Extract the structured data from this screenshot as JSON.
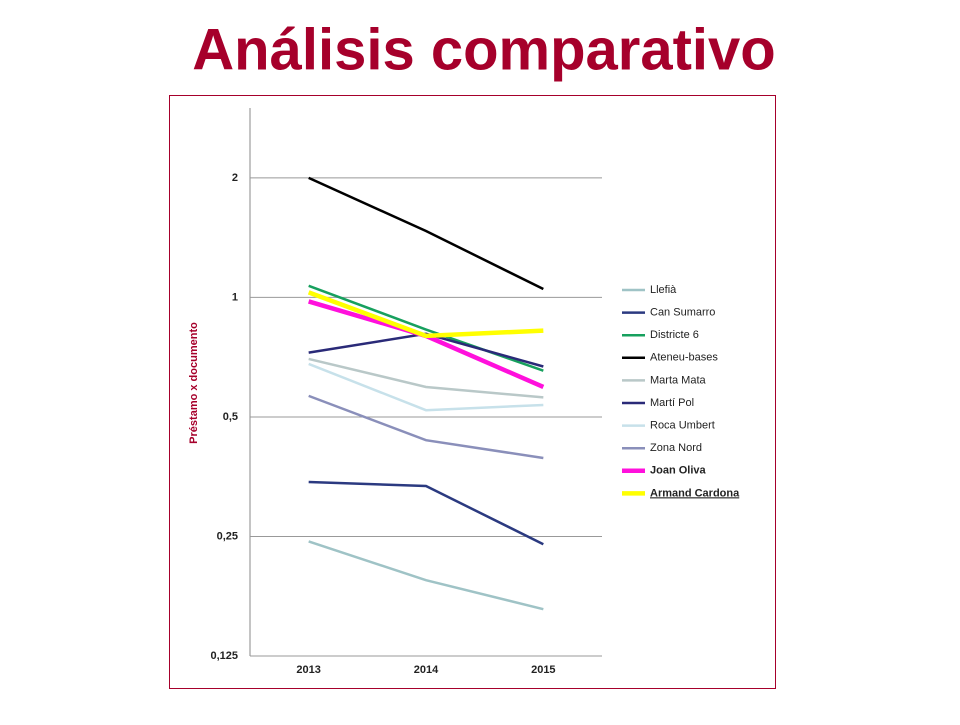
{
  "chart_data": {
    "type": "line",
    "title": "Análisis comparativo",
    "y_label": "Préstamo x documento",
    "categories": [
      "2013",
      "2014",
      "2015"
    ],
    "log_scale": true,
    "log_base": 2,
    "grid": true,
    "legend": "right",
    "ylim": [
      0.125,
      3
    ],
    "yticks": [
      {
        "value": 0.125,
        "label": "0,125"
      },
      {
        "value": 0.25,
        "label": "0,25"
      },
      {
        "value": 0.5,
        "label": "0,5"
      },
      1,
      2
    ],
    "series": [
      {
        "name": "Llefià",
        "color": "#9fc3c6",
        "line_width": 2.5,
        "values": [
          0.243,
          0.194,
          0.164
        ]
      },
      {
        "name": "Can Sumarro",
        "color": "#2b3a80",
        "line_width": 2.5,
        "values": [
          0.343,
          0.335,
          0.239
        ]
      },
      {
        "name": "Districte 6",
        "color": "#17a05e",
        "line_width": 2.5,
        "values": [
          1.07,
          0.83,
          0.654
        ]
      },
      {
        "name": "Ateneu-bases",
        "color": "#000000",
        "line_width": 2.5,
        "values": [
          2,
          1.47,
          1.05
        ]
      },
      {
        "name": "Marta Mata",
        "color": "#b9c8c8",
        "line_width": 2.5,
        "values": [
          0.7,
          0.595,
          0.56
        ]
      },
      {
        "name": "Martí Pol",
        "color": "#2a2a78",
        "line_width": 2.5,
        "values": [
          0.726,
          0.81,
          0.67
        ]
      },
      {
        "name": "Roca Umbert",
        "color": "#c7e1ea",
        "line_width": 2.5,
        "values": [
          0.68,
          0.52,
          0.536
        ]
      },
      {
        "name": "Zona Nord",
        "color": "#8a8fba",
        "line_width": 2.5,
        "values": [
          0.565,
          0.437,
          0.394
        ]
      },
      {
        "name": "Joan Oliva",
        "color": "#ff10dc",
        "line_width": 4.5,
        "values": [
          0.977,
          0.8,
          0.595
        ]
      },
      {
        "name": "Armand Cardona",
        "color": "#ffff00",
        "line_width": 4.5,
        "values": [
          1.03,
          0.8,
          0.825
        ]
      }
    ]
  }
}
